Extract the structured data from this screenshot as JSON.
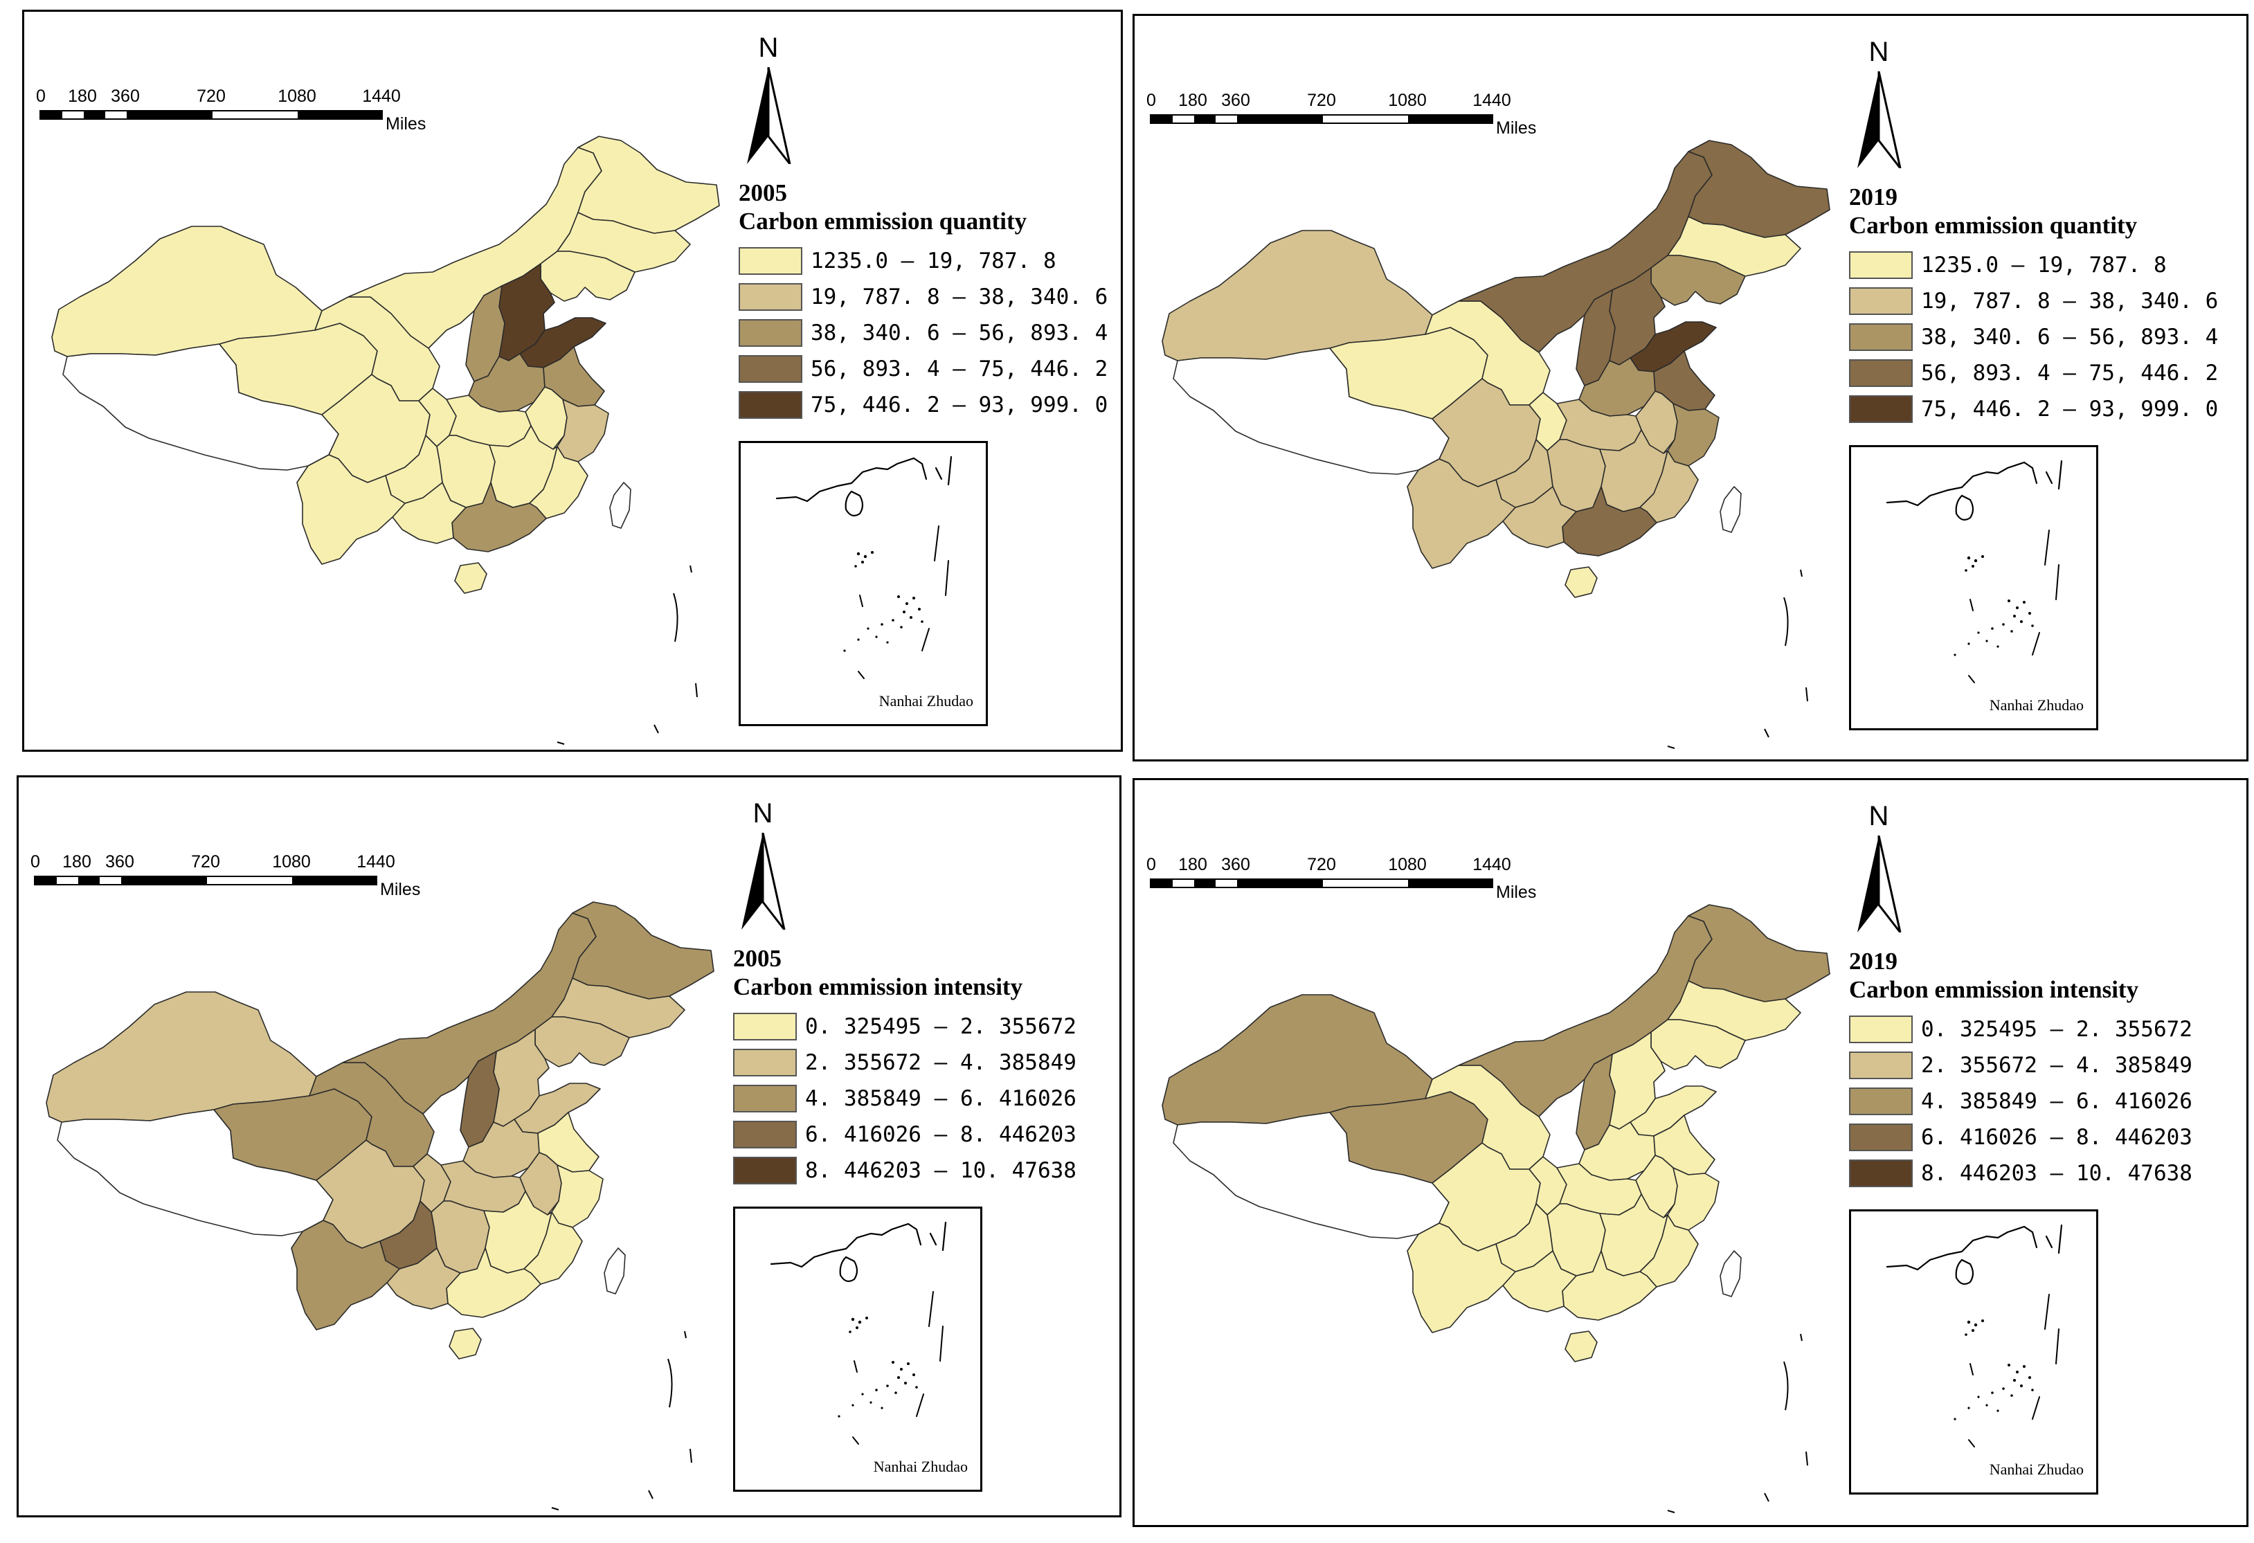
{
  "colors": {
    "class1": "#f6efb0",
    "class2": "#d5c290",
    "class3": "#ab9565",
    "class4": "#866c48",
    "class5": "#5b3f25",
    "nodata": "#ffffff"
  },
  "scalebar": {
    "ticks": [
      "0",
      "180",
      "360",
      "720",
      "1080",
      "1440"
    ],
    "units": "Miles"
  },
  "north_label": "N",
  "inset_label": "Nanhai Zhudao",
  "maps": [
    {
      "year": "2005",
      "title": "Carbon emmission quantity",
      "legend": [
        "1235.0 — 19, 787. 8",
        "19, 787. 8 — 38, 340. 6",
        "38, 340. 6 — 56, 893. 4",
        "56, 893. 4 — 75, 446. 2",
        "75, 446. 2 — 93, 999. 0"
      ],
      "regions": {
        "xinjiang": 1,
        "tibet": 0,
        "qinghai": 1,
        "gansu": 1,
        "inner_mongolia": 1,
        "heilongjiang": 1,
        "jilin": 1,
        "liaoning": 1,
        "hebei": 5,
        "shandong": 5,
        "shanxi": 3,
        "henan": 3,
        "jiangsu": 3,
        "anhui": 1,
        "zhejiang": 2,
        "sichuan": 1,
        "chongqing": 1,
        "hubei": 1,
        "hunan": 1,
        "jiangxi": 1,
        "fujian": 1,
        "guangdong": 3,
        "guangxi": 1,
        "guizhou": 1,
        "yunnan": 1,
        "hainan": 1,
        "taiwan": 0
      }
    },
    {
      "year": "2019",
      "title": "Carbon emmission quantity",
      "legend": [
        "1235.0 — 19, 787. 8",
        "19, 787. 8 — 38, 340. 6",
        "38, 340. 6 — 56, 893. 4",
        "56, 893. 4 — 75, 446. 2",
        "75, 446. 2 — 93, 999. 0"
      ],
      "regions": {
        "xinjiang": 2,
        "tibet": 0,
        "qinghai": 1,
        "gansu": 1,
        "inner_mongolia": 4,
        "heilongjiang": 4,
        "jilin": 1,
        "liaoning": 3,
        "hebei": 4,
        "shandong": 5,
        "shanxi": 4,
        "henan": 3,
        "jiangsu": 4,
        "anhui": 2,
        "zhejiang": 3,
        "sichuan": 2,
        "chongqing": 1,
        "hubei": 2,
        "hunan": 2,
        "jiangxi": 2,
        "fujian": 2,
        "guangdong": 4,
        "guangxi": 2,
        "guizhou": 2,
        "yunnan": 2,
        "hainan": 1,
        "taiwan": 0
      }
    },
    {
      "year": "2005",
      "title": "Carbon emmission intensity",
      "legend": [
        "0. 325495 — 2. 355672",
        "2. 355672 — 4. 385849",
        "4. 385849 — 6. 416026",
        "6. 416026 — 8. 446203",
        "8. 446203 — 10. 47638"
      ],
      "regions": {
        "xinjiang": 2,
        "tibet": 0,
        "qinghai": 3,
        "gansu": 3,
        "inner_mongolia": 3,
        "heilongjiang": 3,
        "jilin": 2,
        "liaoning": 2,
        "hebei": 2,
        "shandong": 2,
        "shanxi": 4,
        "henan": 2,
        "jiangsu": 1,
        "anhui": 2,
        "zhejiang": 1,
        "sichuan": 2,
        "chongqing": 2,
        "hubei": 2,
        "hunan": 2,
        "jiangxi": 1,
        "fujian": 1,
        "guangdong": 1,
        "guangxi": 2,
        "guizhou": 4,
        "yunnan": 3,
        "hainan": 1,
        "taiwan": 0
      }
    },
    {
      "year": "2019",
      "title": "Carbon emmission intensity",
      "legend": [
        "0. 325495 — 2. 355672",
        "2. 355672 — 4. 385849",
        "4. 385849 — 6. 416026",
        "6. 416026 — 8. 446203",
        "8. 446203 — 10. 47638"
      ],
      "regions": {
        "xinjiang": 3,
        "tibet": 0,
        "qinghai": 3,
        "gansu": 1,
        "inner_mongolia": 3,
        "heilongjiang": 3,
        "jilin": 1,
        "liaoning": 1,
        "hebei": 1,
        "shandong": 1,
        "shanxi": 3,
        "henan": 1,
        "jiangsu": 1,
        "anhui": 1,
        "zhejiang": 1,
        "sichuan": 1,
        "chongqing": 1,
        "hubei": 1,
        "hunan": 1,
        "jiangxi": 1,
        "fujian": 1,
        "guangdong": 1,
        "guangxi": 1,
        "guizhou": 1,
        "yunnan": 1,
        "hainan": 1,
        "taiwan": 0
      }
    }
  ]
}
